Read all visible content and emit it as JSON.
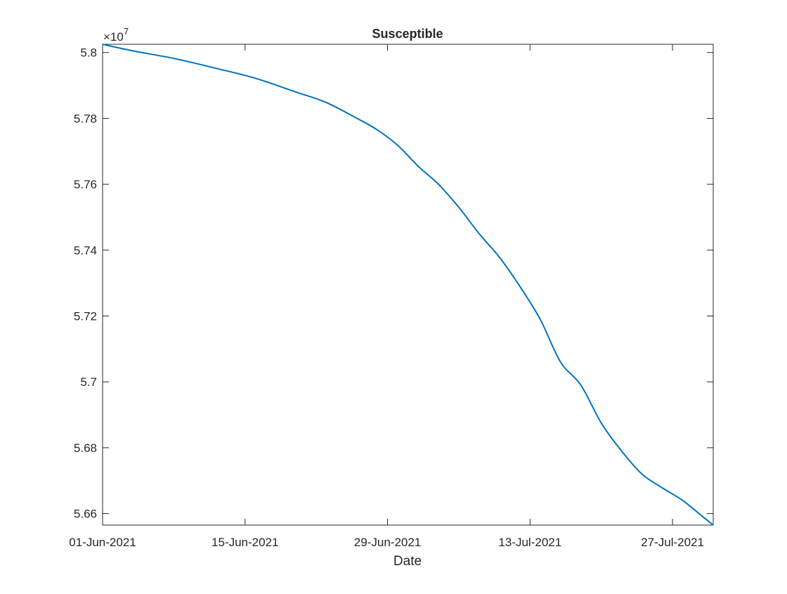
{
  "chart_data": {
    "type": "line",
    "title": "Susceptible",
    "xlabel": "Date",
    "ylabel": "",
    "y_exponent_label": "×10",
    "y_exponent_power": "7",
    "x_tick_labels": [
      "01-Jun-2021",
      "15-Jun-2021",
      "29-Jun-2021",
      "13-Jul-2021",
      "27-Jul-2021"
    ],
    "x_ticks": [
      "2021-06-01",
      "2021-06-15",
      "2021-06-29",
      "2021-07-13",
      "2021-07-27"
    ],
    "xlim": [
      "2021-06-01",
      "2021-07-31"
    ],
    "y_tick_labels": [
      "5.66",
      "5.68",
      "5.7",
      "5.72",
      "5.74",
      "5.76",
      "5.78",
      "5.8"
    ],
    "y_ticks": [
      56600000,
      56800000,
      57000000,
      57200000,
      57400000,
      57600000,
      57800000,
      58000000
    ],
    "ylim": [
      56565000,
      58025000
    ],
    "grid": false,
    "legend": "none",
    "series": [
      {
        "color": "#0072BD",
        "x": [
          "2021-06-01",
          "2021-06-04",
          "2021-06-08",
          "2021-06-12",
          "2021-06-16",
          "2021-06-20",
          "2021-06-23",
          "2021-06-26",
          "2021-06-28",
          "2021-06-30",
          "2021-07-02",
          "2021-07-04",
          "2021-07-06",
          "2021-07-08",
          "2021-07-10",
          "2021-07-12",
          "2021-07-14",
          "2021-07-16",
          "2021-07-18",
          "2021-07-20",
          "2021-07-22",
          "2021-07-24",
          "2021-07-26",
          "2021-07-28",
          "2021-07-30",
          "2021-07-31"
        ],
        "y": [
          58025000,
          58005000,
          57982000,
          57953000,
          57922000,
          57880000,
          57848000,
          57800000,
          57765000,
          57718000,
          57655000,
          57600000,
          57530000,
          57450000,
          57378000,
          57290000,
          57190000,
          57060000,
          56990000,
          56875000,
          56790000,
          56720000,
          56678000,
          56640000,
          56590000,
          56565000
        ]
      }
    ]
  }
}
